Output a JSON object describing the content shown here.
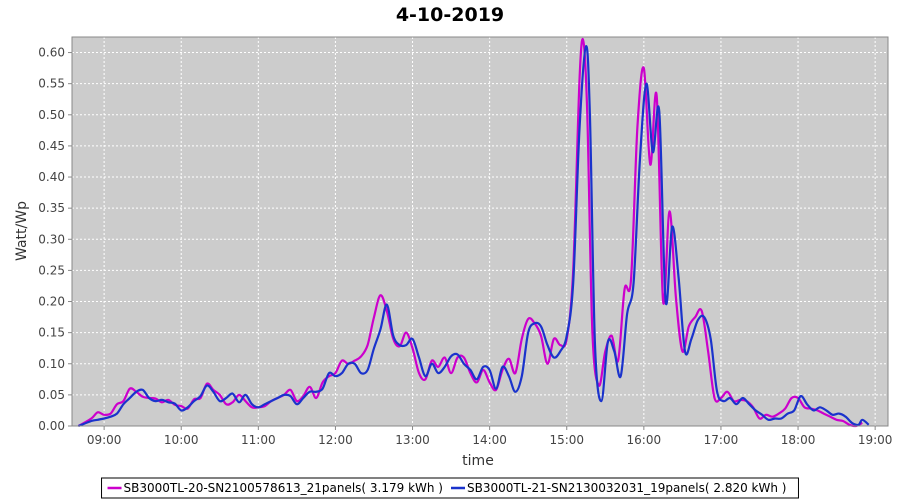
{
  "chart_data": {
    "type": "line",
    "title": "4-10-2019",
    "xlabel": "time",
    "ylabel": "Watt/Wp",
    "xlim": [
      "08:35",
      "19:10"
    ],
    "ylim": [
      0,
      0.625
    ],
    "x_ticks": [
      "09:00",
      "10:00",
      "11:00",
      "12:00",
      "13:00",
      "14:00",
      "15:00",
      "16:00",
      "17:00",
      "18:00",
      "19:00"
    ],
    "y_ticks": [
      "0.00",
      "0.05",
      "0.10",
      "0.15",
      "0.20",
      "0.25",
      "0.30",
      "0.35",
      "0.40",
      "0.45",
      "0.50",
      "0.55",
      "0.60"
    ],
    "grid": true,
    "legend_position": "bottom",
    "series": [
      {
        "name": "SB3000TL-20-SN2100578613_21panels( 3.179 kWh )",
        "color": "#cc00cc",
        "points": [
          [
            "08:40",
            0.0
          ],
          [
            "08:50",
            0.012
          ],
          [
            "08:55",
            0.022
          ],
          [
            "09:00",
            0.018
          ],
          [
            "09:05",
            0.02
          ],
          [
            "09:10",
            0.035
          ],
          [
            "09:15",
            0.04
          ],
          [
            "09:20",
            0.06
          ],
          [
            "09:25",
            0.055
          ],
          [
            "09:30",
            0.047
          ],
          [
            "09:35",
            0.045
          ],
          [
            "09:40",
            0.044
          ],
          [
            "09:45",
            0.038
          ],
          [
            "09:50",
            0.042
          ],
          [
            "09:55",
            0.034
          ],
          [
            "10:00",
            0.032
          ],
          [
            "10:05",
            0.028
          ],
          [
            "10:10",
            0.043
          ],
          [
            "10:15",
            0.045
          ],
          [
            "10:20",
            0.068
          ],
          [
            "10:25",
            0.058
          ],
          [
            "10:30",
            0.05
          ],
          [
            "10:35",
            0.035
          ],
          [
            "10:40",
            0.038
          ],
          [
            "10:45",
            0.05
          ],
          [
            "10:50",
            0.04
          ],
          [
            "10:55",
            0.03
          ],
          [
            "11:00",
            0.03
          ],
          [
            "11:05",
            0.032
          ],
          [
            "11:10",
            0.04
          ],
          [
            "11:15",
            0.045
          ],
          [
            "11:20",
            0.05
          ],
          [
            "11:25",
            0.058
          ],
          [
            "11:30",
            0.04
          ],
          [
            "11:35",
            0.048
          ],
          [
            "11:40",
            0.063
          ],
          [
            "11:45",
            0.045
          ],
          [
            "11:50",
            0.07
          ],
          [
            "11:55",
            0.08
          ],
          [
            "12:00",
            0.085
          ],
          [
            "12:05",
            0.105
          ],
          [
            "12:10",
            0.1
          ],
          [
            "12:15",
            0.105
          ],
          [
            "12:20",
            0.112
          ],
          [
            "12:25",
            0.13
          ],
          [
            "12:30",
            0.175
          ],
          [
            "12:35",
            0.21
          ],
          [
            "12:40",
            0.185
          ],
          [
            "12:45",
            0.14
          ],
          [
            "12:50",
            0.128
          ],
          [
            "12:55",
            0.15
          ],
          [
            "13:00",
            0.125
          ],
          [
            "13:05",
            0.085
          ],
          [
            "13:10",
            0.075
          ],
          [
            "13:15",
            0.105
          ],
          [
            "13:20",
            0.095
          ],
          [
            "13:25",
            0.11
          ],
          [
            "13:30",
            0.085
          ],
          [
            "13:35",
            0.11
          ],
          [
            "13:40",
            0.11
          ],
          [
            "13:45",
            0.085
          ],
          [
            "13:50",
            0.07
          ],
          [
            "13:55",
            0.09
          ],
          [
            "14:00",
            0.07
          ],
          [
            "14:05",
            0.058
          ],
          [
            "14:10",
            0.09
          ],
          [
            "14:15",
            0.108
          ],
          [
            "14:20",
            0.085
          ],
          [
            "14:25",
            0.14
          ],
          [
            "14:30",
            0.172
          ],
          [
            "14:35",
            0.165
          ],
          [
            "14:40",
            0.145
          ],
          [
            "14:45",
            0.1
          ],
          [
            "14:50",
            0.14
          ],
          [
            "14:55",
            0.13
          ],
          [
            "15:00",
            0.14
          ],
          [
            "15:05",
            0.25
          ],
          [
            "15:10",
            0.56
          ],
          [
            "15:13",
            0.618
          ],
          [
            "15:16",
            0.5
          ],
          [
            "15:20",
            0.15
          ],
          [
            "15:25",
            0.065
          ],
          [
            "15:30",
            0.12
          ],
          [
            "15:35",
            0.145
          ],
          [
            "15:40",
            0.105
          ],
          [
            "15:45",
            0.22
          ],
          [
            "15:50",
            0.235
          ],
          [
            "15:55",
            0.48
          ],
          [
            "16:00",
            0.575
          ],
          [
            "16:05",
            0.42
          ],
          [
            "16:10",
            0.53
          ],
          [
            "16:15",
            0.2
          ],
          [
            "16:20",
            0.345
          ],
          [
            "16:25",
            0.205
          ],
          [
            "16:30",
            0.12
          ],
          [
            "16:35",
            0.16
          ],
          [
            "16:40",
            0.175
          ],
          [
            "16:45",
            0.185
          ],
          [
            "16:50",
            0.12
          ],
          [
            "16:55",
            0.045
          ],
          [
            "17:00",
            0.045
          ],
          [
            "17:05",
            0.055
          ],
          [
            "17:10",
            0.04
          ],
          [
            "17:15",
            0.042
          ],
          [
            "17:20",
            0.04
          ],
          [
            "17:25",
            0.03
          ],
          [
            "17:30",
            0.012
          ],
          [
            "17:35",
            0.018
          ],
          [
            "17:40",
            0.015
          ],
          [
            "17:45",
            0.02
          ],
          [
            "17:50",
            0.028
          ],
          [
            "17:55",
            0.045
          ],
          [
            "18:00",
            0.045
          ],
          [
            "18:05",
            0.03
          ],
          [
            "18:10",
            0.028
          ],
          [
            "18:15",
            0.025
          ],
          [
            "18:20",
            0.02
          ],
          [
            "18:25",
            0.015
          ],
          [
            "18:30",
            0.01
          ],
          [
            "18:35",
            0.008
          ],
          [
            "18:40",
            0.002
          ],
          [
            "18:45",
            0.0
          ],
          [
            "18:50",
            0.005
          ]
        ]
      },
      {
        "name": "SB3000TL-21-SN2130032031_19panels( 2.820 kWh )",
        "color": "#1a33cc",
        "points": [
          [
            "08:40",
            0.0
          ],
          [
            "08:50",
            0.008
          ],
          [
            "08:55",
            0.01
          ],
          [
            "09:00",
            0.012
          ],
          [
            "09:05",
            0.015
          ],
          [
            "09:10",
            0.02
          ],
          [
            "09:15",
            0.035
          ],
          [
            "09:20",
            0.045
          ],
          [
            "09:25",
            0.055
          ],
          [
            "09:30",
            0.058
          ],
          [
            "09:35",
            0.045
          ],
          [
            "09:40",
            0.04
          ],
          [
            "09:45",
            0.042
          ],
          [
            "09:50",
            0.038
          ],
          [
            "09:55",
            0.036
          ],
          [
            "10:00",
            0.025
          ],
          [
            "10:05",
            0.03
          ],
          [
            "10:10",
            0.04
          ],
          [
            "10:15",
            0.048
          ],
          [
            "10:20",
            0.065
          ],
          [
            "10:25",
            0.055
          ],
          [
            "10:30",
            0.04
          ],
          [
            "10:35",
            0.045
          ],
          [
            "10:40",
            0.052
          ],
          [
            "10:45",
            0.038
          ],
          [
            "10:50",
            0.05
          ],
          [
            "10:55",
            0.035
          ],
          [
            "11:00",
            0.03
          ],
          [
            "11:05",
            0.035
          ],
          [
            "11:10",
            0.04
          ],
          [
            "11:15",
            0.045
          ],
          [
            "11:20",
            0.05
          ],
          [
            "11:25",
            0.048
          ],
          [
            "11:30",
            0.035
          ],
          [
            "11:35",
            0.045
          ],
          [
            "11:40",
            0.055
          ],
          [
            "11:45",
            0.055
          ],
          [
            "11:50",
            0.06
          ],
          [
            "11:55",
            0.085
          ],
          [
            "12:00",
            0.08
          ],
          [
            "12:05",
            0.085
          ],
          [
            "12:10",
            0.1
          ],
          [
            "12:15",
            0.1
          ],
          [
            "12:20",
            0.085
          ],
          [
            "12:25",
            0.09
          ],
          [
            "12:30",
            0.125
          ],
          [
            "12:35",
            0.155
          ],
          [
            "12:40",
            0.195
          ],
          [
            "12:45",
            0.145
          ],
          [
            "12:50",
            0.13
          ],
          [
            "12:55",
            0.13
          ],
          [
            "13:00",
            0.14
          ],
          [
            "13:05",
            0.11
          ],
          [
            "13:10",
            0.08
          ],
          [
            "13:15",
            0.1
          ],
          [
            "13:20",
            0.085
          ],
          [
            "13:25",
            0.095
          ],
          [
            "13:30",
            0.112
          ],
          [
            "13:35",
            0.115
          ],
          [
            "13:40",
            0.1
          ],
          [
            "13:45",
            0.09
          ],
          [
            "13:50",
            0.075
          ],
          [
            "13:55",
            0.095
          ],
          [
            "14:00",
            0.09
          ],
          [
            "14:05",
            0.06
          ],
          [
            "14:10",
            0.095
          ],
          [
            "14:15",
            0.08
          ],
          [
            "14:20",
            0.055
          ],
          [
            "14:25",
            0.08
          ],
          [
            "14:30",
            0.15
          ],
          [
            "14:35",
            0.165
          ],
          [
            "14:40",
            0.16
          ],
          [
            "14:45",
            0.13
          ],
          [
            "14:50",
            0.11
          ],
          [
            "14:55",
            0.12
          ],
          [
            "15:00",
            0.145
          ],
          [
            "15:05",
            0.23
          ],
          [
            "15:10",
            0.48
          ],
          [
            "15:15",
            0.61
          ],
          [
            "15:18",
            0.5
          ],
          [
            "15:22",
            0.13
          ],
          [
            "15:27",
            0.04
          ],
          [
            "15:32",
            0.135
          ],
          [
            "15:37",
            0.12
          ],
          [
            "15:42",
            0.08
          ],
          [
            "15:47",
            0.18
          ],
          [
            "15:52",
            0.23
          ],
          [
            "15:57",
            0.43
          ],
          [
            "16:02",
            0.55
          ],
          [
            "16:07",
            0.44
          ],
          [
            "16:12",
            0.505
          ],
          [
            "16:17",
            0.2
          ],
          [
            "16:22",
            0.32
          ],
          [
            "16:27",
            0.24
          ],
          [
            "16:32",
            0.12
          ],
          [
            "16:37",
            0.14
          ],
          [
            "16:42",
            0.17
          ],
          [
            "16:47",
            0.175
          ],
          [
            "16:52",
            0.14
          ],
          [
            "16:57",
            0.055
          ],
          [
            "17:02",
            0.04
          ],
          [
            "17:07",
            0.045
          ],
          [
            "17:12",
            0.035
          ],
          [
            "17:17",
            0.045
          ],
          [
            "17:22",
            0.035
          ],
          [
            "17:27",
            0.025
          ],
          [
            "17:32",
            0.018
          ],
          [
            "17:37",
            0.01
          ],
          [
            "17:42",
            0.012
          ],
          [
            "17:47",
            0.012
          ],
          [
            "17:52",
            0.02
          ],
          [
            "17:57",
            0.025
          ],
          [
            "18:02",
            0.048
          ],
          [
            "18:07",
            0.035
          ],
          [
            "18:12",
            0.025
          ],
          [
            "18:17",
            0.03
          ],
          [
            "18:22",
            0.025
          ],
          [
            "18:27",
            0.018
          ],
          [
            "18:32",
            0.02
          ],
          [
            "18:37",
            0.015
          ],
          [
            "18:42",
            0.005
          ],
          [
            "18:47",
            0.002
          ],
          [
            "18:50",
            0.01
          ],
          [
            "18:55",
            0.002
          ]
        ]
      }
    ]
  }
}
